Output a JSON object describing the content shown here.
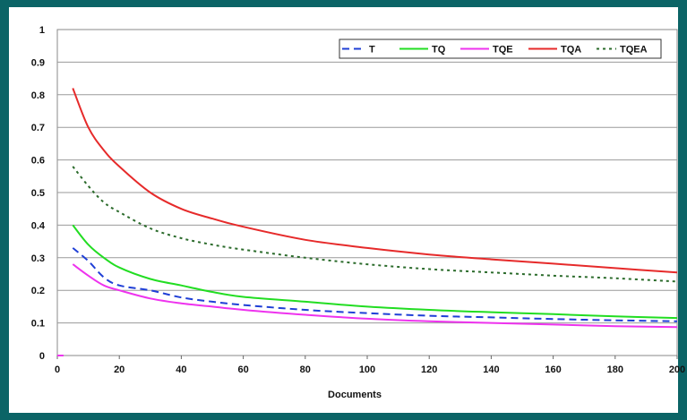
{
  "chart_data": {
    "type": "line",
    "title": "",
    "xlabel": "Documents",
    "ylabel": "",
    "xlim": [
      0,
      200
    ],
    "ylim": [
      0,
      1
    ],
    "x_ticks": [
      0,
      20,
      40,
      60,
      80,
      100,
      120,
      140,
      160,
      180,
      200
    ],
    "y_ticks": [
      0,
      0.1,
      0.2,
      0.3,
      0.4,
      0.5,
      0.6,
      0.7,
      0.8,
      0.9,
      1
    ],
    "y_tick_labels": [
      "0",
      "0.1",
      "0.2",
      "0.3",
      "0.4",
      "0.5",
      "0.6",
      "0.7",
      "0.8",
      "0.9",
      "1"
    ],
    "grid": "horizontal",
    "legend_position": "top-right",
    "x": [
      5,
      10,
      15,
      20,
      30,
      40,
      50,
      60,
      80,
      100,
      120,
      140,
      160,
      180,
      200
    ],
    "series": [
      {
        "name": "T",
        "color": "#1f3fd6",
        "style": "dashed",
        "values": [
          0.33,
          0.29,
          0.24,
          0.215,
          0.2,
          0.178,
          0.165,
          0.155,
          0.14,
          0.13,
          0.122,
          0.117,
          0.112,
          0.108,
          0.105
        ]
      },
      {
        "name": "TQ",
        "color": "#22dd22",
        "style": "solid",
        "values": [
          0.4,
          0.34,
          0.3,
          0.27,
          0.235,
          0.215,
          0.195,
          0.18,
          0.165,
          0.15,
          0.14,
          0.133,
          0.127,
          0.12,
          0.115
        ]
      },
      {
        "name": "TQE",
        "color": "#ee33ee",
        "style": "solid",
        "values": [
          0.28,
          0.245,
          0.215,
          0.2,
          0.175,
          0.16,
          0.15,
          0.14,
          0.125,
          0.113,
          0.105,
          0.1,
          0.095,
          0.09,
          0.087
        ]
      },
      {
        "name": "TQA",
        "color": "#e62a2a",
        "style": "solid",
        "values": [
          0.82,
          0.7,
          0.63,
          0.58,
          0.5,
          0.45,
          0.42,
          0.395,
          0.355,
          0.33,
          0.31,
          0.295,
          0.282,
          0.268,
          0.255
        ]
      },
      {
        "name": "TQEA",
        "color": "#2b6b2b",
        "style": "dotted",
        "values": [
          0.58,
          0.52,
          0.47,
          0.44,
          0.39,
          0.36,
          0.34,
          0.325,
          0.3,
          0.28,
          0.265,
          0.255,
          0.245,
          0.237,
          0.227
        ]
      }
    ]
  }
}
